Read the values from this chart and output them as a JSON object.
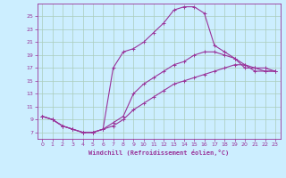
{
  "bg_color": "#cceeff",
  "grid_color": "#aaccbb",
  "line_color": "#993399",
  "xlabel": "Windchill (Refroidissement éolien,°C)",
  "xlim": [
    -0.5,
    23.5
  ],
  "ylim": [
    6.0,
    27.0
  ],
  "xticks": [
    0,
    1,
    2,
    3,
    4,
    5,
    6,
    7,
    8,
    9,
    10,
    11,
    12,
    13,
    14,
    15,
    16,
    17,
    18,
    19,
    20,
    21,
    22,
    23
  ],
  "yticks": [
    7,
    9,
    11,
    13,
    15,
    17,
    19,
    21,
    23,
    25
  ],
  "line1_x": [
    0,
    1,
    2,
    3,
    4,
    5,
    6,
    7,
    8,
    9,
    10,
    11,
    12,
    13,
    14,
    15,
    16,
    17,
    18,
    19,
    20,
    21,
    22,
    23
  ],
  "line1_y": [
    9.5,
    9.0,
    8.0,
    7.5,
    7.0,
    7.0,
    7.5,
    17.0,
    19.5,
    20.0,
    21.0,
    22.5,
    24.0,
    26.0,
    26.5,
    26.5,
    25.5,
    20.5,
    19.5,
    18.5,
    17.0,
    17.0,
    16.5,
    16.5
  ],
  "line2_x": [
    0,
    1,
    2,
    3,
    4,
    5,
    6,
    7,
    8,
    9,
    10,
    11,
    12,
    13,
    14,
    15,
    16,
    17,
    18,
    19,
    20,
    21,
    22,
    23
  ],
  "line2_y": [
    9.5,
    9.0,
    8.0,
    7.5,
    7.0,
    7.0,
    7.5,
    8.5,
    9.5,
    13.0,
    14.5,
    15.5,
    16.5,
    17.5,
    18.0,
    19.0,
    19.5,
    19.5,
    19.0,
    18.5,
    17.5,
    17.0,
    17.0,
    16.5
  ],
  "line3_x": [
    0,
    1,
    2,
    3,
    4,
    5,
    6,
    7,
    8,
    9,
    10,
    11,
    12,
    13,
    14,
    15,
    16,
    17,
    18,
    19,
    20,
    21,
    22,
    23
  ],
  "line3_y": [
    9.5,
    9.0,
    8.0,
    7.5,
    7.0,
    7.0,
    7.5,
    8.0,
    9.0,
    10.5,
    11.5,
    12.5,
    13.5,
    14.5,
    15.0,
    15.5,
    16.0,
    16.5,
    17.0,
    17.5,
    17.5,
    16.5,
    16.5,
    16.5
  ]
}
